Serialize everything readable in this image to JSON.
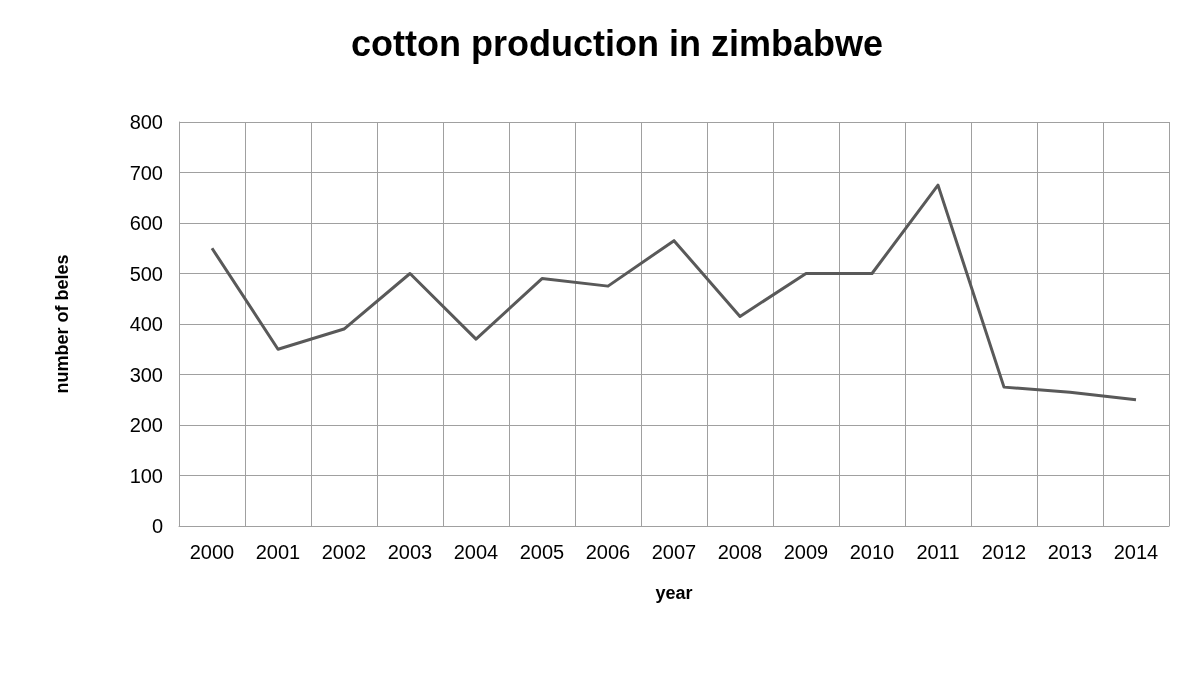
{
  "chart_data": {
    "type": "line",
    "title": "cotton production in zimbabwe",
    "xlabel": "year",
    "ylabel": "number of beles",
    "categories": [
      "2000",
      "2001",
      "2002",
      "2003",
      "2004",
      "2005",
      "2006",
      "2007",
      "2008",
      "2009",
      "2010",
      "2011",
      "2012",
      "2013",
      "2014"
    ],
    "series": [
      {
        "color": "#595959",
        "values": [
          550,
          350,
          390,
          500,
          370,
          490,
          475,
          565,
          415,
          500,
          500,
          675,
          275,
          265,
          250
        ]
      }
    ],
    "ylim": [
      0,
      800
    ],
    "yticks": [
      0,
      100,
      200,
      300,
      400,
      500,
      600,
      700,
      800
    ],
    "grid": true,
    "marker": "none",
    "line_style": "solid"
  }
}
